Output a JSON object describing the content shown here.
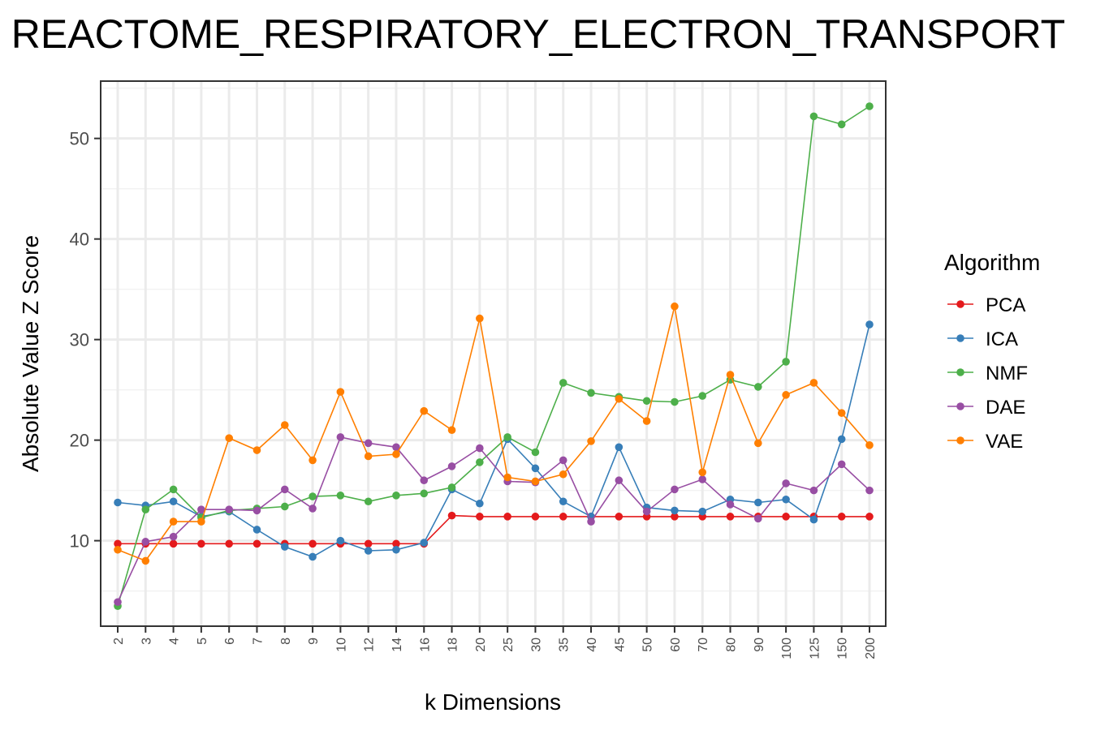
{
  "chart_data": {
    "type": "line",
    "title": "REACTOME_RESPIRATORY_ELECTRON_TRANSPORT",
    "xlabel": "k Dimensions",
    "ylabel": "Absolute Value Z Score",
    "categories": [
      "2",
      "3",
      "4",
      "5",
      "6",
      "7",
      "8",
      "9",
      "10",
      "12",
      "14",
      "16",
      "18",
      "20",
      "25",
      "30",
      "35",
      "40",
      "45",
      "50",
      "60",
      "70",
      "80",
      "90",
      "100",
      "125",
      "150",
      "200"
    ],
    "y_ticks": [
      10,
      20,
      30,
      40,
      50
    ],
    "ylim": [
      1.5,
      55.7
    ],
    "grid": true,
    "legend": {
      "title": "Algorithm",
      "position": "right"
    },
    "series": [
      {
        "name": "PCA",
        "color": "#e41a1c",
        "values": [
          9.7,
          9.7,
          9.7,
          9.7,
          9.7,
          9.7,
          9.7,
          9.7,
          9.7,
          9.7,
          9.7,
          9.7,
          12.5,
          12.4,
          12.4,
          12.4,
          12.4,
          12.4,
          12.4,
          12.4,
          12.4,
          12.4,
          12.4,
          12.4,
          12.4,
          12.4,
          12.4,
          12.4
        ]
      },
      {
        "name": "ICA",
        "color": "#377eb8",
        "values": [
          13.8,
          13.5,
          13.9,
          12.4,
          12.9,
          11.1,
          9.4,
          8.4,
          10.0,
          9.0,
          9.1,
          9.8,
          15.1,
          13.7,
          20.1,
          17.2,
          13.9,
          12.4,
          19.3,
          13.3,
          13.0,
          12.9,
          14.1,
          13.8,
          14.1,
          12.1,
          20.1,
          31.5
        ]
      },
      {
        "name": "NMF",
        "color": "#4daf4a",
        "values": [
          3.5,
          13.1,
          15.1,
          12.3,
          13.0,
          13.2,
          13.4,
          14.4,
          14.5,
          13.9,
          14.5,
          14.7,
          15.3,
          17.8,
          20.3,
          18.8,
          25.7,
          24.7,
          24.3,
          23.9,
          23.8,
          24.4,
          26.0,
          25.3,
          27.8,
          52.2,
          51.4,
          53.2
        ]
      },
      {
        "name": "DAE",
        "color": "#984ea3",
        "values": [
          3.9,
          9.9,
          10.4,
          13.1,
          13.1,
          13.0,
          15.1,
          13.2,
          20.3,
          19.7,
          19.3,
          16.0,
          17.4,
          19.2,
          15.9,
          15.8,
          18.0,
          11.9,
          16.0,
          12.9,
          15.1,
          16.1,
          13.6,
          12.2,
          15.7,
          15.0,
          17.6,
          15.0
        ]
      },
      {
        "name": "VAE",
        "color": "#ff7f00",
        "values": [
          9.1,
          8.0,
          11.9,
          11.9,
          20.2,
          19.0,
          21.5,
          18.0,
          24.8,
          18.4,
          18.6,
          22.9,
          21.0,
          32.1,
          16.3,
          15.9,
          16.6,
          19.9,
          24.1,
          21.9,
          33.3,
          16.8,
          26.5,
          19.7,
          24.5,
          25.7,
          22.7,
          19.5
        ]
      }
    ]
  }
}
